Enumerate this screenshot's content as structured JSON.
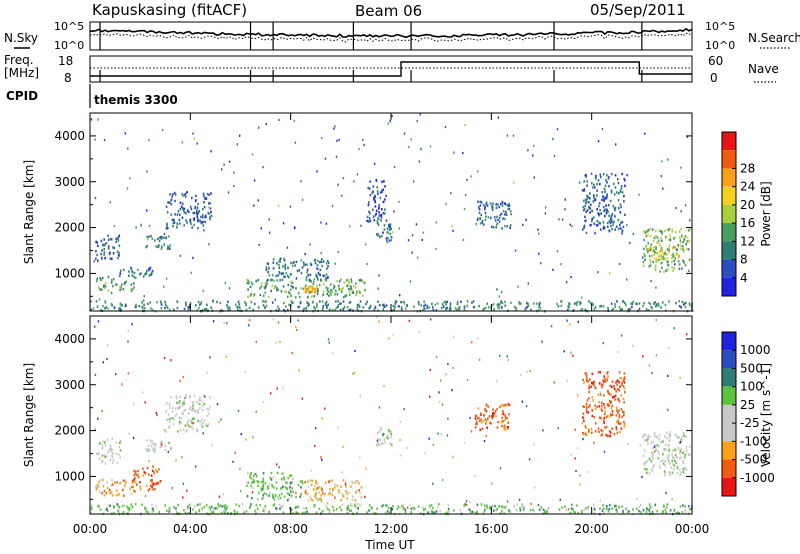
{
  "header": {
    "station": "Kapuskasing (fitACF)",
    "beam": "Beam 06",
    "date": "05/Sep/2011"
  },
  "top_panels": {
    "nsky_label": "N.Sky",
    "nsearch_label": "N.Search",
    "freq_label_line1": "Freq.",
    "freq_label_line2": "[MHz]",
    "nave_label": "Nave",
    "cpid_label": "CPID",
    "cpid_value": "themis 3300",
    "nsky_ticks": [
      "10^5",
      "10^0"
    ],
    "nsearch_ticks": [
      "10^5",
      "10^0"
    ],
    "freq_ticks": [
      "18",
      "8"
    ],
    "nave_ticks": [
      "60",
      "0"
    ]
  },
  "colors": {
    "power_scale": [
      "#1f23e0",
      "#2a4dbf",
      "#2e7e73",
      "#47a05d",
      "#a8cf3c",
      "#f2d21f",
      "#f7a21a",
      "#f25a10",
      "#e81515"
    ],
    "velocity_scale": [
      "#1f23e0",
      "#2a4dbf",
      "#2e7e73",
      "#5cc43c",
      "#c8c8c8",
      "#c8c8c8",
      "#f7a21a",
      "#f25a10",
      "#e81515"
    ]
  },
  "chart_data": [
    {
      "type": "heatmap",
      "name": "power",
      "ylabel": "Slant Range [km]",
      "ylim": [
        180,
        4500
      ],
      "yticks": [
        1000,
        2000,
        3000,
        4000
      ],
      "xlim": [
        0,
        24
      ],
      "colorbar_label": "Power [dB]",
      "colorbar_ticks": [
        "4",
        "8",
        "12",
        "16",
        "20",
        "24",
        "28"
      ],
      "colorbar_range": [
        0,
        30
      ],
      "regions": [
        {
          "t": [
            0.2,
            1.2
          ],
          "r": [
            1300,
            1850
          ],
          "v": 6
        },
        {
          "t": [
            0.2,
            1.8
          ],
          "r": [
            650,
            950
          ],
          "v": 11
        },
        {
          "t": [
            1.0,
            2.5
          ],
          "r": [
            950,
            1150
          ],
          "v": 7
        },
        {
          "t": [
            2.2,
            3.2
          ],
          "r": [
            1550,
            1850
          ],
          "v": 10
        },
        {
          "t": [
            3.0,
            4.8
          ],
          "r": [
            2000,
            2800
          ],
          "v": 6
        },
        {
          "t": [
            6.2,
            11.0
          ],
          "r": [
            500,
            900
          ],
          "v": 12
        },
        {
          "t": [
            7.0,
            9.5
          ],
          "r": [
            850,
            1350
          ],
          "v": 8
        },
        {
          "t": [
            8.5,
            9.0
          ],
          "r": [
            600,
            750
          ],
          "v": 20
        },
        {
          "t": [
            11.4,
            12.0
          ],
          "r": [
            1700,
            2100
          ],
          "v": 7
        },
        {
          "t": [
            11.0,
            11.8
          ],
          "r": [
            2100,
            3100
          ],
          "v": 5
        },
        {
          "t": [
            15.3,
            16.8
          ],
          "r": [
            2000,
            2600
          ],
          "v": 7
        },
        {
          "t": [
            19.6,
            21.3
          ],
          "r": [
            1900,
            3200
          ],
          "v": 6
        },
        {
          "t": [
            22.0,
            23.9
          ],
          "r": [
            1050,
            2000
          ],
          "v": 13
        },
        {
          "t": [
            22.2,
            23.6
          ],
          "r": [
            1300,
            1600
          ],
          "v": 18
        },
        {
          "t": [
            0.0,
            24.0
          ],
          "r": [
            200,
            420
          ],
          "v": 9
        }
      ]
    },
    {
      "type": "heatmap",
      "name": "velocity",
      "ylabel": "Slant Range [km]",
      "xlabel": "Time UT",
      "ylim": [
        180,
        4500
      ],
      "yticks": [
        1000,
        2000,
        3000,
        4000
      ],
      "xlim": [
        0,
        24
      ],
      "xticks": [
        "00:00",
        "04:00",
        "08:00",
        "12:00",
        "16:00",
        "20:00",
        "00:00"
      ],
      "xtick_hours": [
        0,
        4,
        8,
        12,
        16,
        20,
        24
      ],
      "colorbar_label": "Velocity [m s^-1]",
      "colorbar_ticks": [
        "1000",
        "500",
        "100",
        "25",
        "-25",
        "-100",
        "-500",
        "-1000"
      ],
      "regions": [
        {
          "t": [
            0.2,
            1.2
          ],
          "r": [
            1300,
            1850
          ],
          "v": 4
        },
        {
          "t": [
            0.2,
            1.8
          ],
          "r": [
            600,
            950
          ],
          "v": 6
        },
        {
          "t": [
            1.6,
            2.8
          ],
          "r": [
            700,
            1250
          ],
          "v": 7
        },
        {
          "t": [
            2.2,
            3.2
          ],
          "r": [
            1550,
            1850
          ],
          "v": 4
        },
        {
          "t": [
            3.0,
            4.8
          ],
          "r": [
            2000,
            2800
          ],
          "v": 4
        },
        {
          "t": [
            6.2,
            8.5
          ],
          "r": [
            500,
            1100
          ],
          "v": 3
        },
        {
          "t": [
            8.5,
            10.8
          ],
          "r": [
            500,
            950
          ],
          "v": 6
        },
        {
          "t": [
            11.4,
            12.0
          ],
          "r": [
            1700,
            2100
          ],
          "v": 4
        },
        {
          "t": [
            15.3,
            16.8
          ],
          "r": [
            2000,
            2600
          ],
          "v": 7
        },
        {
          "t": [
            19.6,
            21.3
          ],
          "r": [
            1900,
            3300
          ],
          "v": 7
        },
        {
          "t": [
            22.0,
            23.9
          ],
          "r": [
            1050,
            2000
          ],
          "v": 4
        },
        {
          "t": [
            0.0,
            24.0
          ],
          "r": [
            200,
            420
          ],
          "v": 3
        }
      ]
    }
  ]
}
